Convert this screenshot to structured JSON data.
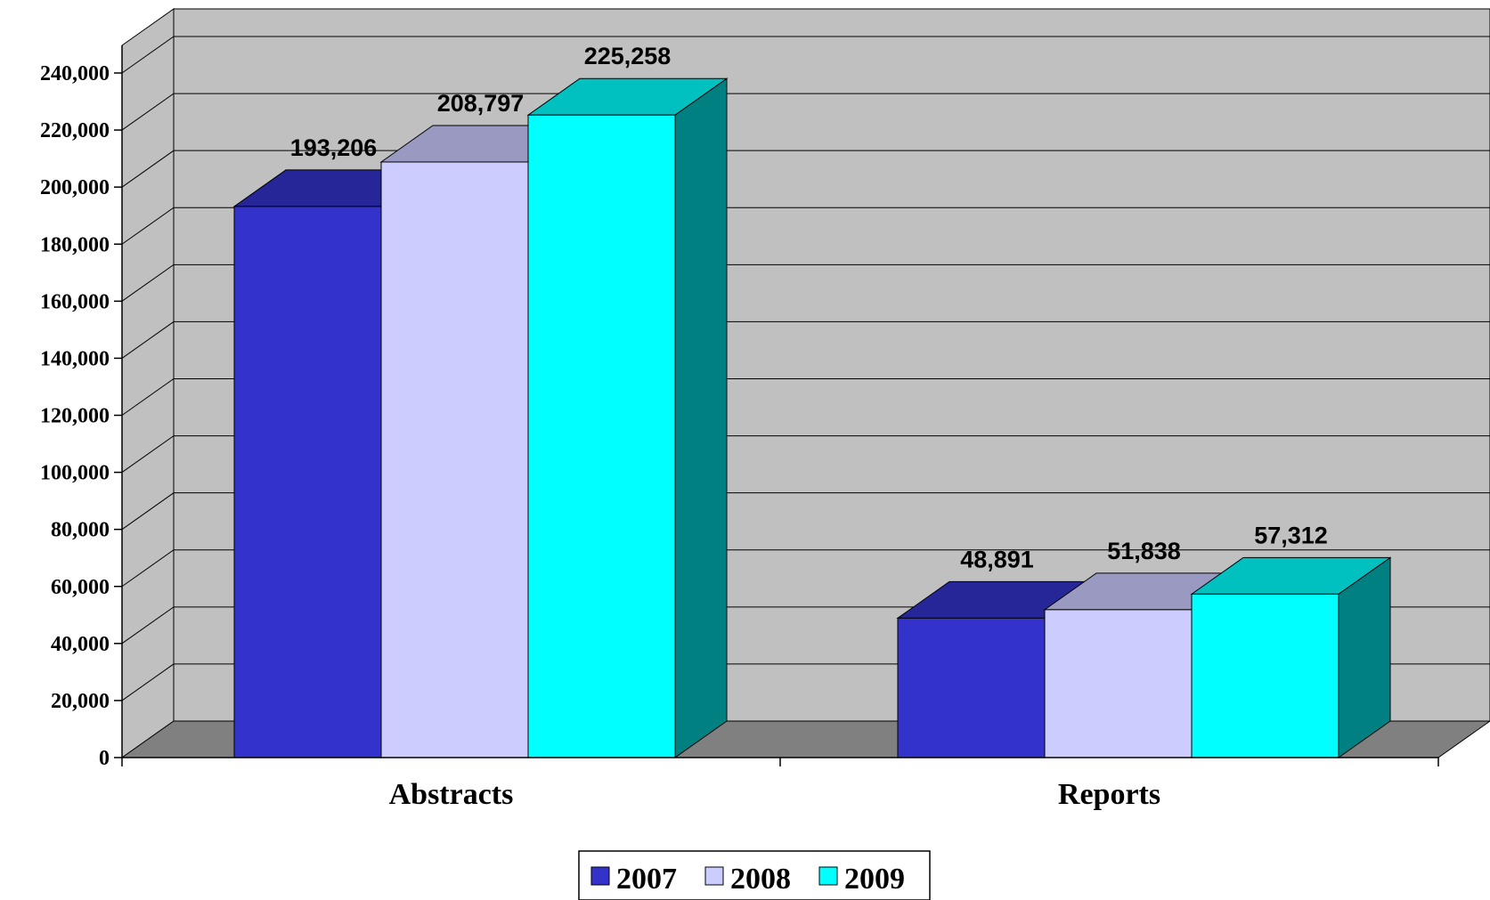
{
  "chart_data": {
    "type": "bar",
    "categories": [
      "Abstracts",
      "Reports"
    ],
    "series": [
      {
        "name": "2007",
        "values": [
          193206,
          48891
        ],
        "data_labels": [
          "193,206",
          "48,891"
        ],
        "colors": {
          "front": "#3333cc",
          "top": "#262699",
          "side": "#1f1f7a"
        }
      },
      {
        "name": "2008",
        "values": [
          208797,
          51838
        ],
        "data_labels": [
          "208,797",
          "51,838"
        ],
        "colors": {
          "front": "#ccccff",
          "top": "#9999c2",
          "side": "#8c8cb3"
        }
      },
      {
        "name": "2009",
        "values": [
          225258,
          57312
        ],
        "data_labels": [
          "225,258",
          "57,312"
        ],
        "colors": {
          "front": "#00ffff",
          "top": "#00c0c0",
          "side": "#008080"
        }
      }
    ],
    "ylim": [
      0,
      240000
    ],
    "yticks": [
      0,
      20000,
      40000,
      60000,
      80000,
      100000,
      120000,
      140000,
      160000,
      180000,
      200000,
      220000,
      240000
    ],
    "ytick_labels": [
      "0",
      "20,000",
      "40,000",
      "60,000",
      "80,000",
      "100,000",
      "120,000",
      "140,000",
      "160,000",
      "180,000",
      "200,000",
      "220,000",
      "240,000"
    ],
    "grid": true,
    "legend": "bottom-center",
    "title": "",
    "xlabel": "",
    "ylabel": "",
    "style": {
      "wall": "#c0c0c0",
      "floor": "#808080",
      "grid": "#000000"
    }
  }
}
